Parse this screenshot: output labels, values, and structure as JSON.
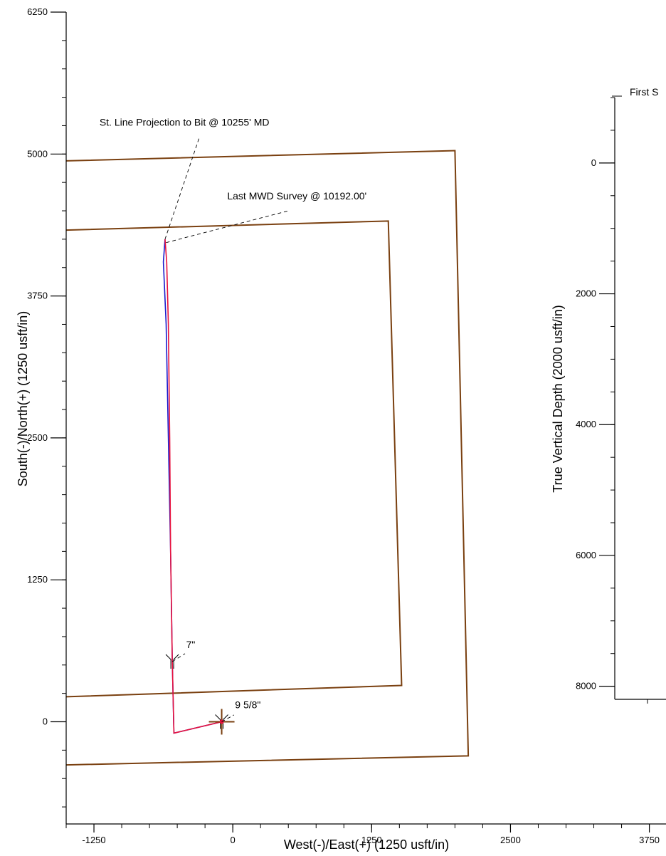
{
  "chart_data": [
    {
      "type": "line",
      "title": "",
      "xlabel": "West(-)/East(+) (1250 usft/in)",
      "ylabel": "South(-)/North(+) (1250 usft/in)",
      "xlim": [
        -1500,
        3900
      ],
      "ylim": [
        -900,
        6250
      ],
      "x_ticks": [
        {
          "value": -1250,
          "label": "-1250"
        },
        {
          "value": 0,
          "label": "0"
        },
        {
          "value": 1250,
          "label": "1250"
        },
        {
          "value": 2500,
          "label": "2500"
        },
        {
          "value": 3750,
          "label": "3750"
        }
      ],
      "y_ticks": [
        {
          "value": 0,
          "label": "0"
        },
        {
          "value": 1250,
          "label": "1250"
        },
        {
          "value": 2500,
          "label": "2500"
        },
        {
          "value": 3750,
          "label": "3750"
        },
        {
          "value": 5000,
          "label": "5000"
        },
        {
          "value": 6250,
          "label": "6250"
        }
      ],
      "minor_tick_step": 250,
      "boundaries": [
        {
          "name": "outer-lease-line",
          "color": "#7a4010",
          "points": [
            [
              -1500,
              4940
            ],
            [
              2000,
              5030
            ],
            [
              2120,
              -300
            ],
            [
              -1500,
              -380
            ]
          ]
        },
        {
          "name": "inner-setback-line",
          "color": "#7a4010",
          "points": [
            [
              -1500,
              4330
            ],
            [
              1400,
              4410
            ],
            [
              1520,
              320
            ],
            [
              -1500,
              220
            ]
          ]
        }
      ],
      "series": [
        {
          "color": "#1a1acc",
          "points": [
            [
              -100,
              0
            ],
            [
              -530,
              -100
            ],
            [
              -545,
              550
            ],
            [
              -560,
              1500
            ],
            [
              -580,
              2500
            ],
            [
              -600,
              3500
            ],
            [
              -625,
              4050
            ],
            [
              -610,
              4250
            ]
          ]
        },
        {
          "color": "#e8103c",
          "points": [
            [
              -100,
              0
            ],
            [
              -530,
              -100
            ],
            [
              -545,
              550
            ],
            [
              -560,
              1500
            ],
            [
              -568,
              2500
            ],
            [
              -580,
              3500
            ],
            [
              -595,
              4050
            ],
            [
              -610,
              4250
            ]
          ]
        }
      ],
      "annotations": [
        {
          "text": "St. Line Projection to Bit @ 10255' MD",
          "x": -1200,
          "y": 5250,
          "point": [
            -610,
            4250
          ],
          "anchor": [
            -300,
            5150
          ]
        },
        {
          "text": "Last MWD Survey @ 10192.00'",
          "x": -50,
          "y": 4600,
          "point": [
            -600,
            4220
          ],
          "anchor": [
            500,
            4500
          ]
        },
        {
          "text": "7\"",
          "x": -420,
          "y": 650,
          "point": [
            -545,
            530
          ],
          "anchor": [
            -430,
            600
          ]
        },
        {
          "text": "9 5/8\"",
          "x": 20,
          "y": 120,
          "point": [
            -100,
            0
          ],
          "anchor": [
            10,
            60
          ]
        }
      ],
      "casing_marks": [
        {
          "label": "7\"",
          "x": -545,
          "y": 530
        },
        {
          "label": "9 5/8\"",
          "x": -100,
          "y": 0
        }
      ],
      "origin_mark": {
        "x": -100,
        "y": 0
      }
    },
    {
      "type": "line",
      "title": "First S",
      "xlabel": "",
      "ylabel": "True Vertical Depth (2000 usft/in)",
      "ylim": [
        -1000,
        8200
      ],
      "inverted": true,
      "y_ticks": [
        {
          "value": 0,
          "label": "0"
        },
        {
          "value": 2000,
          "label": "2000"
        },
        {
          "value": 4000,
          "label": "4000"
        },
        {
          "value": 6000,
          "label": "6000"
        },
        {
          "value": 8000,
          "label": "8000"
        }
      ],
      "minor_tick_step": 500
    }
  ]
}
